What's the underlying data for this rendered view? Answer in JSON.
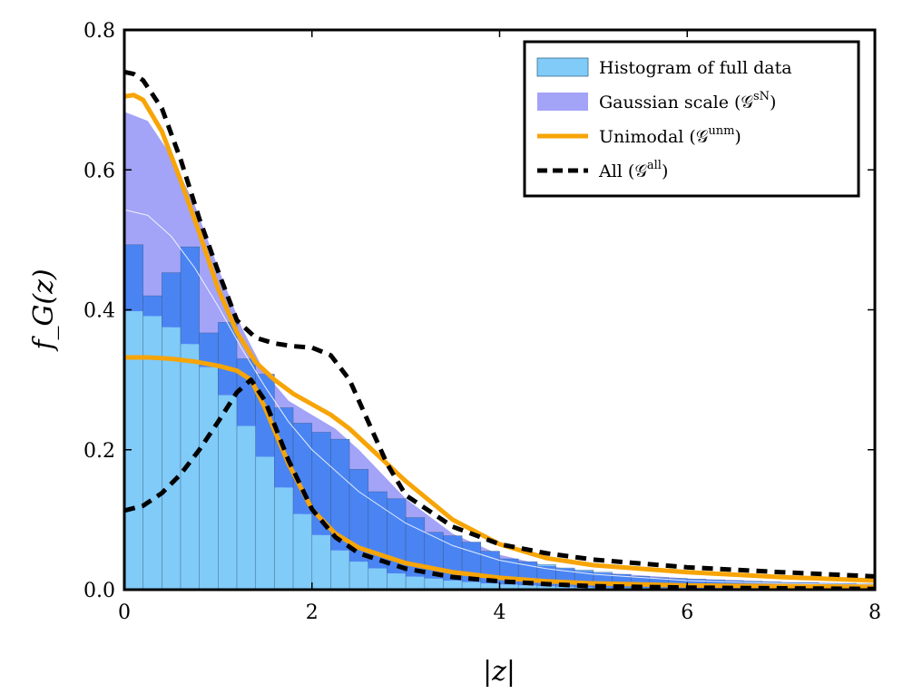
{
  "chart_data": {
    "type": "area",
    "xlabel": "|z|",
    "ylabel": "f_G(z)",
    "xlim": [
      0,
      8
    ],
    "ylim": [
      0,
      0.8
    ],
    "x_ticks": [
      "0",
      "2",
      "4",
      "6",
      "8"
    ],
    "y_ticks": [
      "0.0",
      "0.2",
      "0.4",
      "0.6",
      "0.8"
    ],
    "grid": false,
    "legend_position": "top-right",
    "legend": [
      {
        "label": "Histogram of full data",
        "kind": "patch",
        "color": "#80cbf8"
      },
      {
        "label": "Gaussian scale (𝒢",
        "sup": "sN",
        "suffix": ")",
        "kind": "patch",
        "color": "#a3a3f7"
      },
      {
        "label": "Unimodal (𝒢",
        "sup": "unm",
        "suffix": ")",
        "kind": "line",
        "color": "#f7a406"
      },
      {
        "label": "All (𝒢",
        "sup": "all",
        "suffix": ")",
        "kind": "dash",
        "color": "#000000"
      }
    ],
    "histogram": {
      "bin_width": 0.2,
      "outer_values": [
        0.493,
        0.42,
        0.453,
        0.49,
        0.367,
        0.382,
        0.33,
        0.308,
        0.26,
        0.238,
        0.225,
        0.215,
        0.172,
        0.14,
        0.13,
        0.103,
        0.082,
        0.077,
        0.068,
        0.055,
        0.044,
        0.04,
        0.036,
        0.031,
        0.028,
        0.025,
        0.022,
        0.019,
        0.017,
        0.016,
        0.015,
        0.014,
        0.013,
        0.012,
        0.011,
        0.01,
        0.01,
        0.009,
        0.009,
        0.008
      ]
    },
    "bands": [
      {
        "name": "Gaussian scale outer",
        "color": "#a3a3f7",
        "x": [
          0,
          0.25,
          0.5,
          0.75,
          1,
          1.25,
          1.5,
          1.75,
          2,
          2.25,
          2.5,
          2.75,
          3,
          3.5,
          4,
          4.5,
          5,
          6,
          7,
          8
        ],
        "upper": [
          0.683,
          0.67,
          0.62,
          0.55,
          0.46,
          0.375,
          0.31,
          0.27,
          0.25,
          0.23,
          0.2,
          0.165,
          0.13,
          0.08,
          0.05,
          0.034,
          0.025,
          0.016,
          0.011,
          0.008
        ],
        "lower": [
          0.4,
          0.395,
          0.375,
          0.345,
          0.3,
          0.245,
          0.19,
          0.135,
          0.09,
          0.06,
          0.04,
          0.028,
          0.02,
          0.013,
          0.008,
          0.005,
          0.003,
          0.002,
          0.001,
          0.001
        ]
      }
    ],
    "mean_line": {
      "x": [
        0,
        0.25,
        0.5,
        0.75,
        1,
        1.25,
        1.5,
        1.75,
        2,
        2.5,
        3,
        3.5,
        4,
        4.5,
        5,
        6,
        7,
        8
      ],
      "y": [
        0.543,
        0.535,
        0.505,
        0.46,
        0.405,
        0.345,
        0.29,
        0.24,
        0.2,
        0.14,
        0.095,
        0.063,
        0.042,
        0.03,
        0.022,
        0.013,
        0.009,
        0.007
      ]
    },
    "series": [
      {
        "style": "solid",
        "color": "#f7a406",
        "x": [
          0,
          0.1,
          0.2,
          0.4,
          0.6,
          0.8,
          1,
          1.2,
          1.4,
          1.6,
          1.8,
          2,
          2.2,
          2.4,
          2.6,
          2.8,
          3,
          3.5,
          4,
          4.5,
          5,
          6,
          7,
          8
        ],
        "y": [
          0.705,
          0.707,
          0.7,
          0.655,
          0.585,
          0.51,
          0.43,
          0.368,
          0.325,
          0.3,
          0.28,
          0.265,
          0.25,
          0.23,
          0.205,
          0.18,
          0.155,
          0.1,
          0.065,
          0.045,
          0.035,
          0.025,
          0.018,
          0.013
        ]
      },
      {
        "style": "solid",
        "color": "#f7a406",
        "x": [
          0,
          0.25,
          0.5,
          0.75,
          1,
          1.2,
          1.35,
          1.5,
          1.75,
          2,
          2.25,
          2.5,
          3,
          3.5,
          4,
          4.5,
          5,
          6,
          7,
          8
        ],
        "y": [
          0.332,
          0.332,
          0.33,
          0.326,
          0.32,
          0.313,
          0.3,
          0.26,
          0.18,
          0.115,
          0.08,
          0.06,
          0.038,
          0.025,
          0.017,
          0.012,
          0.009,
          0.006,
          0.005,
          0.004
        ]
      },
      {
        "style": "dashed",
        "color": "#000000",
        "x": [
          0,
          0.1,
          0.2,
          0.4,
          0.6,
          0.8,
          1,
          1.2,
          1.4,
          1.6,
          1.8,
          2,
          2.2,
          2.4,
          2.6,
          2.8,
          3,
          3.5,
          4,
          4.5,
          5,
          6,
          7,
          8
        ],
        "y": [
          0.74,
          0.737,
          0.728,
          0.688,
          0.615,
          0.53,
          0.455,
          0.385,
          0.36,
          0.352,
          0.348,
          0.346,
          0.335,
          0.3,
          0.24,
          0.18,
          0.135,
          0.09,
          0.065,
          0.052,
          0.043,
          0.032,
          0.025,
          0.019
        ]
      },
      {
        "style": "dashed",
        "color": "#000000",
        "x": [
          0,
          0.2,
          0.4,
          0.6,
          0.8,
          1,
          1.2,
          1.35,
          1.5,
          1.75,
          2,
          2.25,
          2.5,
          3,
          3.5,
          4,
          4.5,
          5,
          6,
          7,
          8
        ],
        "y": [
          0.113,
          0.12,
          0.138,
          0.165,
          0.2,
          0.24,
          0.282,
          0.3,
          0.27,
          0.185,
          0.115,
          0.075,
          0.052,
          0.03,
          0.018,
          0.012,
          0.008,
          0.005,
          0.003,
          0.002,
          0.001
        ]
      }
    ]
  }
}
